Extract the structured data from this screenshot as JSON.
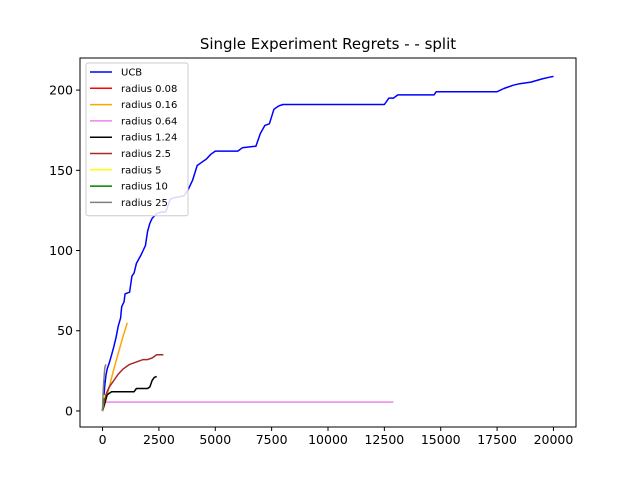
{
  "chart_data": {
    "type": "line",
    "title": "Single Experiment Regrets -  - split",
    "xlabel": "",
    "ylabel": "",
    "xlim": [
      -1000,
      21000
    ],
    "ylim": [
      -10,
      220
    ],
    "x_ticks": [
      0,
      2500,
      5000,
      7500,
      10000,
      12500,
      15000,
      17500,
      20000
    ],
    "y_ticks": [
      0,
      50,
      100,
      150,
      200
    ],
    "grid": false,
    "legend_position": "top-left",
    "series": [
      {
        "name": "UCB",
        "color": "#0000ff",
        "points": [
          [
            0,
            0
          ],
          [
            50,
            8
          ],
          [
            100,
            16
          ],
          [
            150,
            22
          ],
          [
            200,
            26
          ],
          [
            300,
            30
          ],
          [
            400,
            35
          ],
          [
            500,
            40
          ],
          [
            600,
            46
          ],
          [
            700,
            53
          ],
          [
            800,
            58
          ],
          [
            850,
            65
          ],
          [
            950,
            68
          ],
          [
            1000,
            73
          ],
          [
            1200,
            74
          ],
          [
            1300,
            84
          ],
          [
            1400,
            86
          ],
          [
            1500,
            92
          ],
          [
            1700,
            97
          ],
          [
            1800,
            100
          ],
          [
            1900,
            103
          ],
          [
            2000,
            112
          ],
          [
            2100,
            117
          ],
          [
            2200,
            120
          ],
          [
            2400,
            123
          ],
          [
            2600,
            124
          ],
          [
            2800,
            124
          ],
          [
            3000,
            132
          ],
          [
            3200,
            133
          ],
          [
            3600,
            134
          ],
          [
            3800,
            138
          ],
          [
            4000,
            144
          ],
          [
            4200,
            153
          ],
          [
            4400,
            155
          ],
          [
            4600,
            157
          ],
          [
            4800,
            160
          ],
          [
            5000,
            162
          ],
          [
            6000,
            162
          ],
          [
            6200,
            164
          ],
          [
            6800,
            165
          ],
          [
            7000,
            173
          ],
          [
            7200,
            178
          ],
          [
            7400,
            179
          ],
          [
            7600,
            188
          ],
          [
            7800,
            190
          ],
          [
            8000,
            191
          ],
          [
            10000,
            191
          ],
          [
            12500,
            191
          ],
          [
            12700,
            195
          ],
          [
            12900,
            195
          ],
          [
            13100,
            197
          ],
          [
            14000,
            197
          ],
          [
            14700,
            197
          ],
          [
            14800,
            199
          ],
          [
            16000,
            199
          ],
          [
            17500,
            199
          ],
          [
            17800,
            201
          ],
          [
            18200,
            203
          ],
          [
            18500,
            204
          ],
          [
            19000,
            205
          ],
          [
            19500,
            207
          ],
          [
            19800,
            208
          ],
          [
            20000,
            208.5
          ]
        ]
      },
      {
        "name": "radius 0.08",
        "color": "#ff0000",
        "points": [
          [
            0,
            0
          ],
          [
            30,
            5
          ],
          [
            80,
            8
          ],
          [
            100,
            10
          ]
        ]
      },
      {
        "name": "radius 0.16",
        "color": "#ffa500",
        "points": [
          [
            0,
            0
          ],
          [
            100,
            4
          ],
          [
            300,
            15
          ],
          [
            500,
            26
          ],
          [
            700,
            36
          ],
          [
            900,
            46
          ],
          [
            1100,
            55
          ]
        ]
      },
      {
        "name": "radius 0.64",
        "color": "#ee82ee",
        "points": [
          [
            0,
            0
          ],
          [
            50,
            5
          ],
          [
            100,
            5.5
          ],
          [
            500,
            5.5
          ],
          [
            5000,
            5.5
          ],
          [
            10000,
            5.5
          ],
          [
            12900,
            5.5
          ]
        ]
      },
      {
        "name": "radius 1.24",
        "color": "#000000",
        "points": [
          [
            0,
            0
          ],
          [
            100,
            5
          ],
          [
            200,
            10
          ],
          [
            300,
            11
          ],
          [
            400,
            12
          ],
          [
            1000,
            12
          ],
          [
            1400,
            12
          ],
          [
            1500,
            14
          ],
          [
            2000,
            14
          ],
          [
            2100,
            15
          ],
          [
            2200,
            19
          ],
          [
            2300,
            21
          ],
          [
            2400,
            21.5
          ]
        ]
      },
      {
        "name": "radius 2.5",
        "color": "#a52a2a",
        "points": [
          [
            0,
            0
          ],
          [
            100,
            8
          ],
          [
            200,
            12
          ],
          [
            300,
            15
          ],
          [
            500,
            19
          ],
          [
            700,
            23
          ],
          [
            900,
            26
          ],
          [
            1100,
            28
          ],
          [
            1200,
            29
          ],
          [
            1400,
            30
          ],
          [
            1600,
            31
          ],
          [
            1800,
            32
          ],
          [
            2000,
            32
          ],
          [
            2200,
            33
          ],
          [
            2400,
            35
          ],
          [
            2700,
            35
          ]
        ]
      },
      {
        "name": "radius 5",
        "color": "#ffff00",
        "points": [
          [
            0,
            0
          ],
          [
            40,
            6
          ],
          [
            80,
            10
          ]
        ]
      },
      {
        "name": "radius 10",
        "color": "#008000",
        "points": [
          [
            0,
            0
          ],
          [
            30,
            5
          ],
          [
            60,
            8
          ]
        ]
      },
      {
        "name": "radius 25",
        "color": "#808080",
        "points": [
          [
            0,
            0
          ],
          [
            20,
            10
          ],
          [
            50,
            18
          ],
          [
            100,
            27
          ],
          [
            150,
            29
          ]
        ]
      }
    ]
  }
}
